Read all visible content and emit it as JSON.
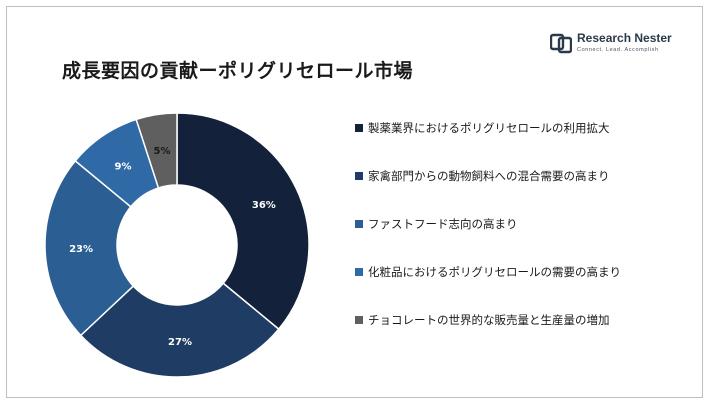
{
  "title": "成長要因の貢献ーポリグリセロール市場",
  "logo": {
    "name": "Research Nester",
    "tagline": "Connect. Lead. Accomplish",
    "icon": "research-nester-logo-icon"
  },
  "colors": {
    "navy_dark": "#13223a",
    "navy": "#1f3d64",
    "blue": "#2b5f94",
    "blue_mid": "#2f6aa6",
    "gray": "#5f5f5f",
    "label_light": "#ffffff",
    "label_dark": "#1a1a1a"
  },
  "chart_data": {
    "type": "pie",
    "donut": true,
    "title": "成長要因の貢献ーポリグリセロール市場",
    "legend_position": "right",
    "slices": [
      {
        "label": "製薬業界におけるポリグリセロールの利用拡大",
        "value": 36,
        "display": "36%",
        "color": "#13223a"
      },
      {
        "label": "家禽部門からの動物飼料への混合需要の高まり",
        "value": 27,
        "display": "27%",
        "color": "#1f3d64"
      },
      {
        "label": "ファストフード志向の高まり",
        "value": 23,
        "display": "23%",
        "color": "#2b5f94"
      },
      {
        "label": "化粧品におけるポリグリセロールの需要の高まり",
        "value": 9,
        "display": "9%",
        "color": "#2f6aa6"
      },
      {
        "label": "チョコレートの世界的な販売量と生産量の増加",
        "value": 5,
        "display": "5%",
        "color": "#5f5f5f"
      }
    ]
  }
}
